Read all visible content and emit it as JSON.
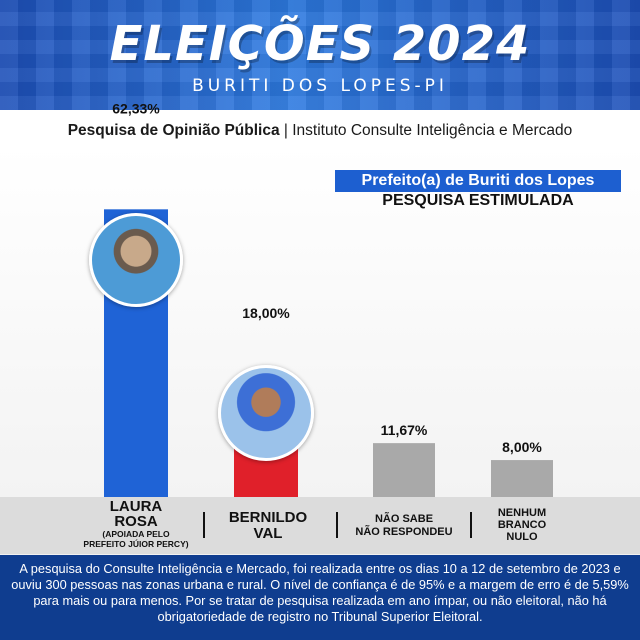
{
  "banner": {
    "title": "ELEIÇÕES 2024",
    "subtitle": "BURITI DOS LOPES-PI"
  },
  "source": {
    "bold": "Pesquisa de Opinião Pública",
    "rest": " | Instituto Consulte Inteligência e Mercado"
  },
  "office": "Prefeito(a) de Buriti dos Lopes",
  "survey_type": "PESQUISA ESTIMULADA",
  "labels": {
    "laura_line1": "LAURA",
    "laura_line2": "ROSA",
    "laura_note1": "(APOIADA PELO",
    "laura_note2": "PREFEITO JÚIOR PERCY)",
    "bernildo_line1": "BERNILDO",
    "bernildo_line2": "VAL",
    "naosabe_line1": "NÃO SABE",
    "naosabe_line2": "NÃO RESPONDEU",
    "nenhum_line1": "NENHUM",
    "nenhum_line2": "BRANCO",
    "nenhum_line3": "NULO"
  },
  "colors": {
    "laura": "#1f63d6",
    "bernildo": "#e0202a",
    "naosabe": "#a9a9a9",
    "nenhum": "#a9a9a9"
  },
  "chart_data": {
    "type": "bar",
    "categories": [
      "LAURA ROSA",
      "BERNILDO VAL",
      "NÃO SABE NÃO RESPONDEU",
      "NENHUM BRANCO NULO"
    ],
    "values": [
      62.33,
      18.0,
      11.67,
      8.0
    ],
    "value_labels": [
      "62,33%",
      "18,00%",
      "11,67%",
      "8,00%"
    ],
    "unit": "%",
    "ylim": [
      0,
      65
    ]
  },
  "footer": "A pesquisa do Consulte Inteligência e Mercado, foi realizada entre os dias 10 a 12 de setembro de 2023 e ouviu 300 pessoas nas zonas urbana e rural. O nível de confiança é de 95% e a margem de erro é de 5,59% para mais ou para menos. Por se tratar de pesquisa realizada em ano ímpar, ou não eleitoral, não há obrigatoriedade de registro no Tribunal Superior Eleitoral."
}
